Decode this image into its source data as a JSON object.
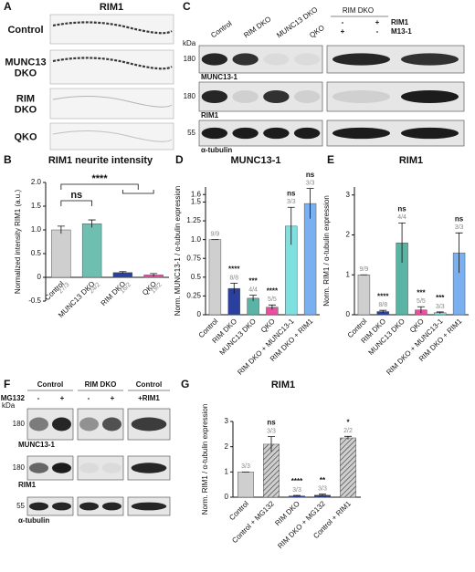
{
  "panels": {
    "A": {
      "letter": "A",
      "title": "RIM1",
      "rows": [
        [
          "Control"
        ],
        [
          "MUNC13",
          "DKO"
        ],
        [
          "RIM",
          "DKO"
        ],
        [
          "QKO"
        ]
      ]
    },
    "C": {
      "letter": "C",
      "lanes": [
        "Control",
        "RIM DKO",
        "MUNC13 DKO",
        "QKO"
      ],
      "rescue_title": "RIM DKO",
      "rescue_rows": [
        {
          "name": "RIM1",
          "signs": [
            "-",
            "+"
          ]
        },
        {
          "name": "M13-1",
          "signs": [
            "+",
            "-"
          ]
        }
      ],
      "kda": "kDa",
      "blots": [
        {
          "name": "MUNC13-1",
          "marker": 180
        },
        {
          "name": "RIM1",
          "marker": 180
        },
        {
          "name": "α-tubulin",
          "marker": 55
        }
      ]
    },
    "F": {
      "letter": "F",
      "groups": [
        "Control",
        "RIM DKO",
        "Control"
      ],
      "treatment": "MG132",
      "signs": [
        "-",
        "+",
        "-",
        "+"
      ],
      "rescue": "+RIM1",
      "kda": "kDa",
      "blots": [
        {
          "name": "MUNC13-1",
          "marker": 180
        },
        {
          "name": "RIM1",
          "marker": 180
        },
        {
          "name": "α-tubulin",
          "marker": 55
        }
      ]
    }
  },
  "chart_data": [
    {
      "type": "bar",
      "panel": "B",
      "title": "RIM1 neurite intensity",
      "ylabel": "Normalized intensity RIM1 (a.u.)",
      "categories": [
        "Control",
        "MUNC13 DKO",
        "RIM DKO",
        "QKO"
      ],
      "values": [
        1.0,
        1.13,
        0.1,
        0.05
      ],
      "errors": [
        0.08,
        0.08,
        0.02,
        0.03
      ],
      "colors": [
        "#cfcfcf",
        "#6fbfb0",
        "#2a3f9e",
        "#e84fa0"
      ],
      "hatched": [
        false,
        false,
        false,
        false
      ],
      "n_labels": [
        "27/3",
        "24/2",
        "16/2",
        "19/2"
      ],
      "sig_labels": [
        null,
        "ns",
        null,
        "****"
      ],
      "ylim": [
        -0.5,
        2.0
      ],
      "yticks": [
        -0.5,
        0,
        0.5,
        {
          "value": 1,
          "label": "1.0"
        },
        {
          "value": 1.5,
          "label": "1.5"
        },
        {
          "value": 2,
          "label": "2.0"
        }
      ]
    },
    {
      "type": "bar",
      "panel": "D",
      "title": "MUNC13-1",
      "ylabel": "Norm. MUNC13-1 / α-tubulin expression",
      "categories": [
        "Control",
        "RIM DKO",
        "MUNC13 DKO",
        "QKO",
        "RIM DKO + MUNC13-1",
        "RIM DKO + RIM1"
      ],
      "values": [
        1.0,
        0.35,
        0.22,
        0.1,
        1.18,
        1.48
      ],
      "errors": [
        0,
        0.07,
        0.04,
        0.03,
        0.25,
        0.2
      ],
      "colors": [
        "#cfcfcf",
        "#2a3f9e",
        "#5ab4a4",
        "#e84fa0",
        "#7fe0e0",
        "#7ab0f0"
      ],
      "hatched": [
        false,
        false,
        false,
        false,
        false,
        false
      ],
      "n_labels": [
        "9/9",
        "8/8",
        "4/4",
        "5/5",
        "3/3",
        "3/3"
      ],
      "sig_labels": [
        null,
        "****",
        "***",
        "****",
        "ns",
        "ns"
      ],
      "ylim": [
        0,
        1.7
      ],
      "yticks": [
        0,
        0.25,
        0.5,
        0.75,
        {
          "value": 1,
          "label": "1.0"
        },
        1.25,
        1.5,
        1.6
      ]
    },
    {
      "type": "bar",
      "panel": "E",
      "title": "RIM1",
      "ylabel": "Norm. RIM1 / α-tubulin expression",
      "categories": [
        "Control",
        "RIM DKO",
        "MUNC13 DKO",
        "QKO",
        "RIM DKO + MUNC13-1",
        "RIM DKO + RIM1"
      ],
      "values": [
        1.0,
        0.08,
        1.8,
        0.12,
        0.05,
        1.55
      ],
      "errors": [
        0,
        0.03,
        0.5,
        0.08,
        0.02,
        0.5
      ],
      "colors": [
        "#cfcfcf",
        "#2a3f9e",
        "#5ab4a4",
        "#e84fa0",
        "#7fe0e0",
        "#7ab0f0"
      ],
      "hatched": [
        false,
        false,
        false,
        false,
        false,
        false
      ],
      "n_labels": [
        "9/9",
        "8/8",
        "4/4",
        "5/5",
        "3/3",
        "3/3"
      ],
      "sig_labels": [
        null,
        "****",
        "ns",
        "***",
        "***",
        "ns"
      ],
      "ylim": [
        0,
        3.2
      ],
      "yticks": [
        0,
        1,
        2,
        3
      ]
    },
    {
      "type": "bar",
      "panel": "G",
      "title": "RIM1",
      "ylabel": "Norm. RIM1 / α-tubulin expression",
      "categories": [
        "Control",
        "Control + MG132",
        "RIM DKO",
        "RIM DKO + MG132",
        "Control + RIM1"
      ],
      "values": [
        1.0,
        2.1,
        0.05,
        0.08,
        2.35
      ],
      "errors": [
        0,
        0.3,
        0.02,
        0.04,
        0.06
      ],
      "colors": [
        "#cfcfcf",
        "#cfcfcf",
        "#2a3f9e",
        "#2a3f9e",
        "#cfcfcf"
      ],
      "hatched": [
        false,
        true,
        false,
        true,
        true
      ],
      "n_labels": [
        "3/3",
        "3/3",
        "3/3",
        "3/3",
        "2/2"
      ],
      "sig_labels": [
        null,
        "ns",
        "****",
        "**",
        "*"
      ],
      "ylim": [
        0,
        3
      ],
      "yticks": [
        0,
        1,
        2,
        3
      ]
    }
  ]
}
